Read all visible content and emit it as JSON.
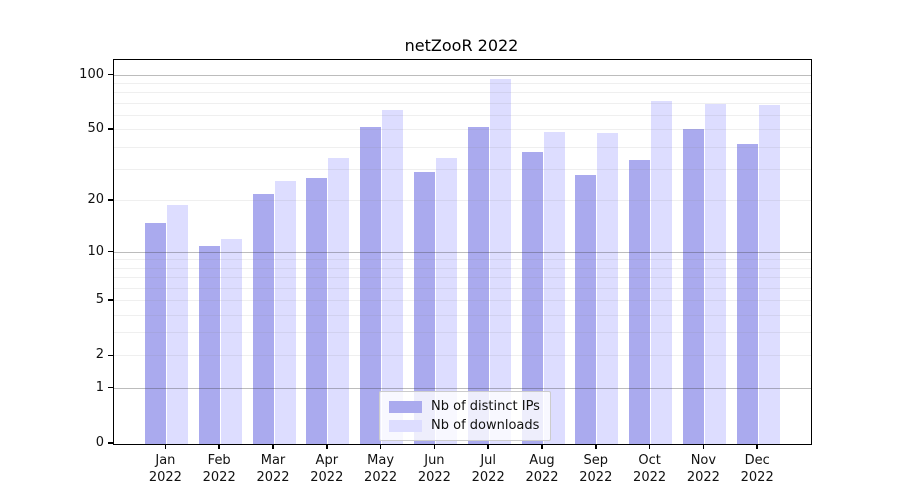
{
  "title": "netZooR 2022",
  "chart_data": {
    "type": "bar",
    "title": "netZooR 2022",
    "categories": [
      "Jan 2022",
      "Feb 2022",
      "Mar 2022",
      "Apr 2022",
      "May 2022",
      "Jun 2022",
      "Jul 2022",
      "Aug 2022",
      "Sep 2022",
      "Oct 2022",
      "Nov 2022",
      "Dec 2022"
    ],
    "months": [
      "Jan",
      "Feb",
      "Mar",
      "Apr",
      "May",
      "Jun",
      "Jul",
      "Aug",
      "Sep",
      "Oct",
      "Nov",
      "Dec"
    ],
    "year": "2022",
    "series": [
      {
        "name": "Nb of distinct IPs",
        "color": "#AAAAEE",
        "values": [
          15,
          11,
          22,
          27,
          52,
          29,
          52,
          38,
          28,
          34,
          51,
          42
        ]
      },
      {
        "name": "Nb of downloads",
        "color": "#DDDDFF",
        "values": [
          19,
          12,
          26,
          35,
          65,
          35,
          96,
          49,
          48,
          72,
          70,
          69
        ]
      }
    ],
    "y_axis": {
      "scale": "log1p",
      "ticks": [
        0,
        1,
        2,
        5,
        10,
        20,
        50,
        100
      ],
      "major_gridlines": [
        1,
        10,
        100
      ],
      "minor_gridlines": [
        2,
        3,
        4,
        5,
        6,
        7,
        8,
        9,
        20,
        30,
        40,
        50,
        60,
        70,
        80,
        90
      ],
      "top_value": 121
    },
    "xlabel": "",
    "ylabel": "",
    "grid": true,
    "legend_position": "lower center"
  },
  "colors": {
    "bar_distinct_ips": "#AAAAEE",
    "bar_downloads": "#DDDDFF",
    "major_grid": "#b5b5b5",
    "minor_grid": "#ebebeb",
    "axis": "#000000",
    "legend_border": "#cccccc"
  }
}
